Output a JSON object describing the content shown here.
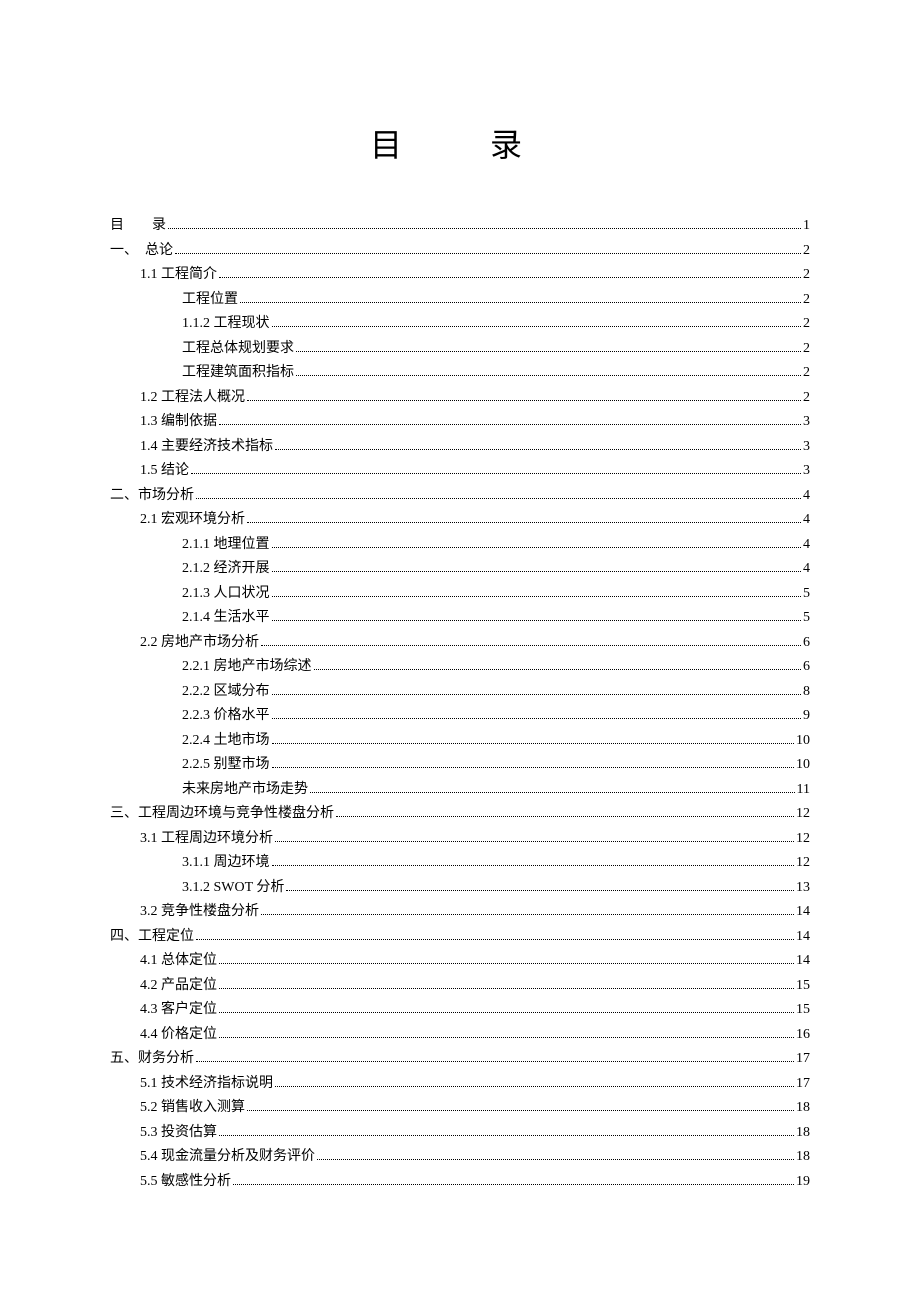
{
  "title": "目　录",
  "toc": [
    {
      "indent": 0,
      "label": "目　　录",
      "page": "1"
    },
    {
      "indent": 0,
      "label": "一、　总论",
      "page": "2"
    },
    {
      "indent": 1,
      "label": "1.1 工程简介",
      "page": "2"
    },
    {
      "indent": 2,
      "label": "工程位置",
      "page": "2"
    },
    {
      "indent": 2,
      "label": "1.1.2  工程现状",
      "page": "2"
    },
    {
      "indent": 2,
      "label": "工程总体规划要求",
      "page": "2"
    },
    {
      "indent": 2,
      "label": "工程建筑面积指标",
      "page": "2"
    },
    {
      "indent": 1,
      "label": "1.2 工程法人概况",
      "page": "2"
    },
    {
      "indent": 1,
      "label": "1.3 编制依据",
      "page": "3"
    },
    {
      "indent": 1,
      "label": "1.4 主要经济技术指标",
      "page": "3"
    },
    {
      "indent": 1,
      "label": "1.5 结论",
      "page": "3"
    },
    {
      "indent": 0,
      "label": "二、市场分析",
      "page": "4"
    },
    {
      "indent": 1,
      "label": "2.1 宏观环境分析",
      "page": "4"
    },
    {
      "indent": 2,
      "label": "2.1.1  地理位置",
      "page": "4"
    },
    {
      "indent": 2,
      "label": "2.1.2  经济开展",
      "page": "4"
    },
    {
      "indent": 2,
      "label": "2.1.3  人口状况",
      "page": "5"
    },
    {
      "indent": 2,
      "label": "2.1.4  生活水平",
      "page": "5"
    },
    {
      "indent": 1,
      "label": "2.2  房地产市场分析",
      "page": "6"
    },
    {
      "indent": 2,
      "label": "2.2.1  房地产市场综述",
      "page": "6"
    },
    {
      "indent": 2,
      "label": "2.2.2  区域分布",
      "page": "8"
    },
    {
      "indent": 2,
      "label": "2.2.3  价格水平",
      "page": "9"
    },
    {
      "indent": 2,
      "label": "2.2.4  土地市场",
      "page": "10"
    },
    {
      "indent": 2,
      "label": "2.2.5  别墅市场",
      "page": "10"
    },
    {
      "indent": 2,
      "label": "未来房地产市场走势",
      "page": "11"
    },
    {
      "indent": 0,
      "label": "三、工程周边环境与竞争性楼盘分析",
      "page": "12"
    },
    {
      "indent": 1,
      "label": "3.1 工程周边环境分析",
      "page": "12"
    },
    {
      "indent": 2,
      "label": "3.1.1  周边环境",
      "page": "12"
    },
    {
      "indent": 2,
      "label": "3.1.2 SWOT 分析",
      "page": "13"
    },
    {
      "indent": 1,
      "label": "3.2  竞争性楼盘分析",
      "page": "14"
    },
    {
      "indent": 0,
      "label": "四、工程定位",
      "page": "14"
    },
    {
      "indent": 1,
      "label": "4.1  总体定位",
      "page": "14"
    },
    {
      "indent": 1,
      "label": "4.2  产品定位",
      "page": "15"
    },
    {
      "indent": 1,
      "label": "4.3  客户定位",
      "page": "15"
    },
    {
      "indent": 1,
      "label": "4.4  价格定位",
      "page": "16"
    },
    {
      "indent": 0,
      "label": "五、财务分析",
      "page": "17"
    },
    {
      "indent": 1,
      "label": "5.1  技术经济指标说明",
      "page": "17"
    },
    {
      "indent": 1,
      "label": "5.2  销售收入测算",
      "page": "18"
    },
    {
      "indent": 1,
      "label": "5.3 投资估算",
      "page": "18"
    },
    {
      "indent": 1,
      "label": "5.4 现金流量分析及财务评价",
      "page": "18"
    },
    {
      "indent": 1,
      "label": "5.5 敏感性分析",
      "page": "19"
    }
  ]
}
